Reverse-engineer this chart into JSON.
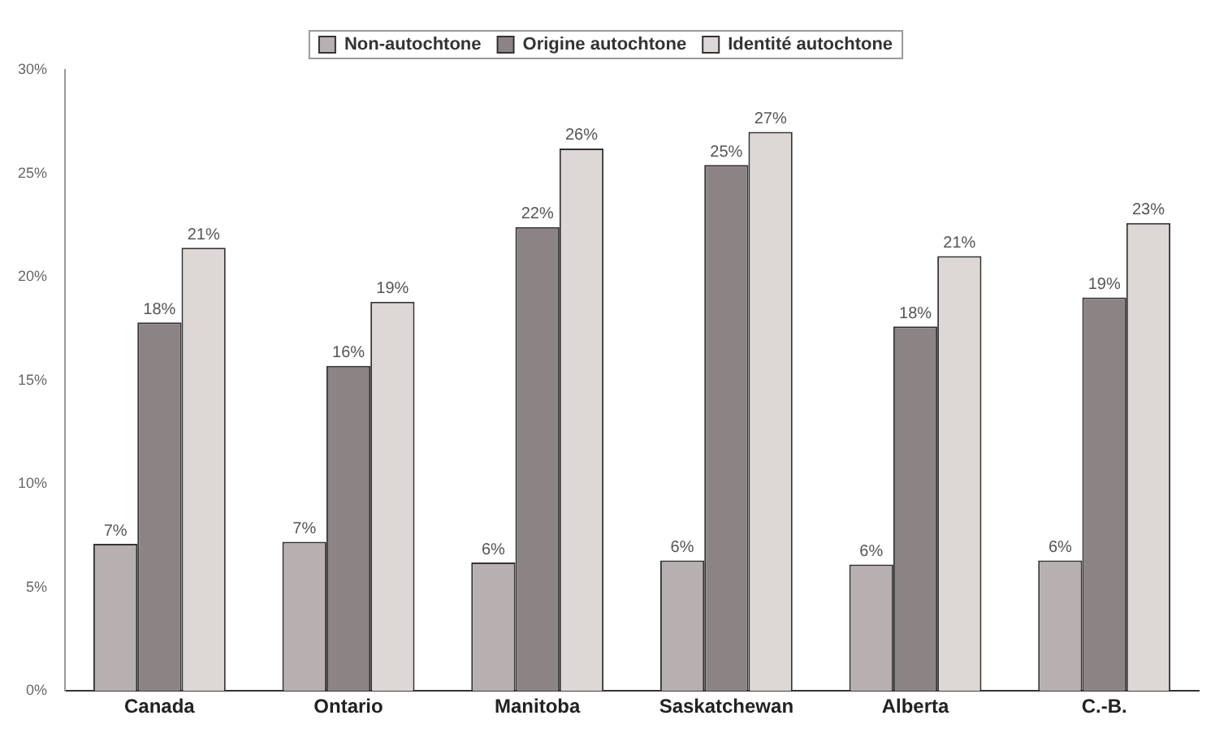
{
  "chart_data": {
    "type": "bar",
    "categories": [
      "Canada",
      "Ontario",
      "Manitoba",
      "Saskatchewan",
      "Alberta",
      "C.-B."
    ],
    "series": [
      {
        "name": "Non-autochtone",
        "color": "#b8b0b0",
        "values": [
          7.1,
          7.2,
          6.2,
          6.3,
          6.1,
          6.3
        ],
        "value_labels": [
          "7%",
          "7%",
          "6%",
          "6%",
          "6%",
          "6%"
        ]
      },
      {
        "name": "Origine autochtone",
        "color": "#8c8484",
        "values": [
          17.8,
          15.7,
          22.4,
          25.4,
          17.6,
          19.0
        ],
        "value_labels": [
          "18%",
          "16%",
          "22%",
          "25%",
          "18%",
          "19%"
        ]
      },
      {
        "name": "Identité autochtone",
        "color": "#ddd8d6",
        "values": [
          21.4,
          18.8,
          26.2,
          27.0,
          21.0,
          22.6
        ],
        "value_labels": [
          "21%",
          "19%",
          "26%",
          "27%",
          "21%",
          "23%"
        ]
      }
    ],
    "ylim": [
      0,
      30
    ],
    "yticks": [
      {
        "value": 0,
        "label": "0%"
      },
      {
        "value": 5,
        "label": "5%"
      },
      {
        "value": 10,
        "label": "10%"
      },
      {
        "value": 15,
        "label": "15%"
      },
      {
        "value": 20,
        "label": "20%"
      },
      {
        "value": 25,
        "label": "25%"
      },
      {
        "value": 30,
        "label": "30%"
      }
    ],
    "grid": false,
    "legend": "top"
  }
}
